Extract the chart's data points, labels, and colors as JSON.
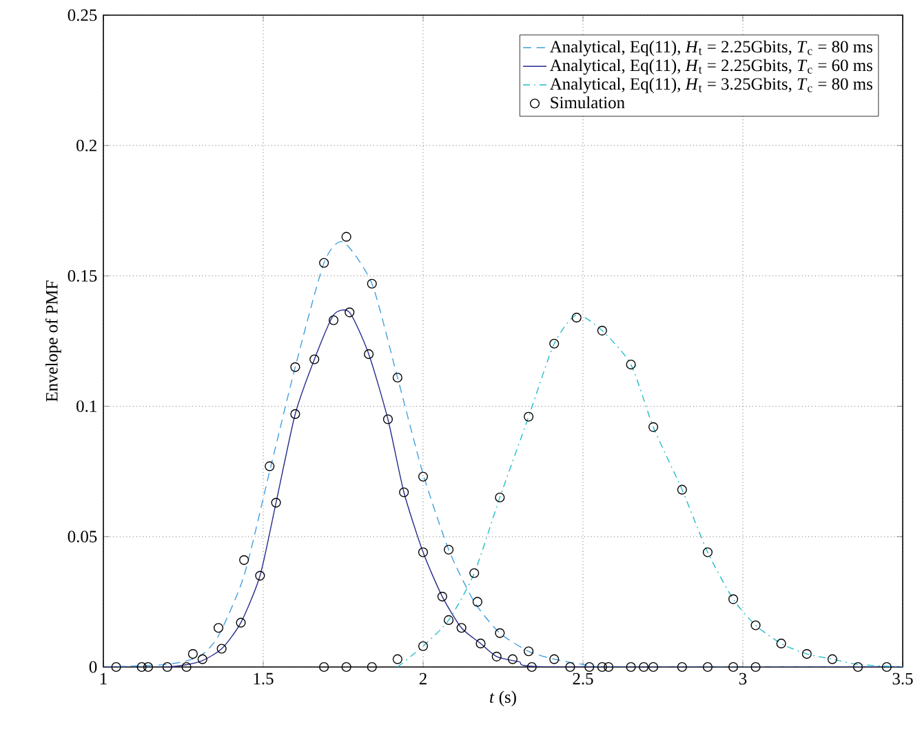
{
  "chart_data": {
    "type": "line",
    "xlabel": "*t* (s)",
    "ylabel": "Envelope of PMF",
    "xlim": [
      1,
      3.5
    ],
    "ylim": [
      0,
      0.25
    ],
    "xticks": [
      1,
      1.5,
      2,
      2.5,
      3,
      3.5
    ],
    "yticks": [
      0,
      0.05,
      0.1,
      0.15,
      0.2,
      0.25
    ],
    "grid": true,
    "legend": "top right",
    "series": [
      {
        "name": "Analytical, Eq(11), *H*$_{t}$ = 2.25Gbits, *T*$_{c}$ = 80 ms",
        "line_style": "dashed",
        "marker": "none",
        "color": "#3f9fdf",
        "x": [
          1.0,
          1.2,
          1.3,
          1.36,
          1.44,
          1.52,
          1.6,
          1.69,
          1.75,
          1.84,
          1.92,
          2.0,
          2.08,
          2.16,
          2.24,
          2.33,
          2.41,
          2.5,
          2.6,
          3.5
        ],
        "values": [
          0,
          0.001,
          0.004,
          0.012,
          0.035,
          0.075,
          0.115,
          0.155,
          0.163,
          0.147,
          0.111,
          0.074,
          0.045,
          0.025,
          0.013,
          0.006,
          0.003,
          0.001,
          0,
          0
        ]
      },
      {
        "name": "Analytical, Eq(11), *H*$_{t}$ = 2.25Gbits, *T*$_{c}$ = 60 ms",
        "line_style": "solid",
        "marker": "none",
        "color": "#262a8c",
        "x": [
          1.0,
          1.2,
          1.3,
          1.37,
          1.43,
          1.49,
          1.54,
          1.6,
          1.66,
          1.72,
          1.77,
          1.83,
          1.89,
          1.94,
          2.0,
          2.06,
          2.12,
          2.18,
          2.23,
          2.3,
          2.4,
          3.5
        ],
        "values": [
          0,
          0,
          0.002,
          0.007,
          0.017,
          0.035,
          0.063,
          0.097,
          0.118,
          0.135,
          0.136,
          0.12,
          0.095,
          0.067,
          0.044,
          0.027,
          0.015,
          0.009,
          0.004,
          0.002,
          0,
          0
        ]
      },
      {
        "name": "Analytical, Eq(11), *H*$_{t}$ = 3.25Gbits, *T*$_{c}$ = 80 ms",
        "line_style": "dashdot",
        "marker": "none",
        "color": "#1fbcc9",
        "x": [
          1.92,
          2.0,
          2.08,
          2.16,
          2.24,
          2.33,
          2.41,
          2.48,
          2.56,
          2.65,
          2.72,
          2.81,
          2.89,
          2.97,
          3.04,
          3.12,
          3.2,
          3.28,
          3.36,
          3.5
        ],
        "values": [
          0,
          0.008,
          0.018,
          0.036,
          0.065,
          0.096,
          0.124,
          0.135,
          0.129,
          0.116,
          0.092,
          0.068,
          0.044,
          0.026,
          0.016,
          0.009,
          0.005,
          0.003,
          0.001,
          0
        ]
      },
      {
        "name": "Simulation",
        "type": "scatter",
        "marker": "circle",
        "color": "#000000",
        "x": [
          1.04,
          1.12,
          1.14,
          1.2,
          1.26,
          1.28,
          1.31,
          1.36,
          1.37,
          1.43,
          1.44,
          1.49,
          1.52,
          1.54,
          1.6,
          1.6,
          1.66,
          1.69,
          1.72,
          1.76,
          1.77,
          1.83,
          1.84,
          1.89,
          1.92,
          1.94,
          2.0,
          2.0,
          2.06,
          2.08,
          2.08,
          2.12,
          2.16,
          2.17,
          2.18,
          2.23,
          2.24,
          2.28,
          2.33,
          2.34,
          2.41,
          1.69,
          1.76,
          1.84,
          1.92,
          2.0,
          2.24,
          2.33,
          2.41,
          2.48,
          2.56,
          2.65,
          2.72,
          2.81,
          2.89,
          2.97,
          3.04,
          3.12,
          3.2,
          3.28,
          3.36,
          3.45,
          2.46,
          2.52,
          2.56,
          2.58,
          2.65,
          2.69,
          2.72,
          2.81,
          2.89,
          2.97,
          3.04
        ],
        "values": [
          0,
          0,
          0,
          0,
          0,
          0.005,
          0.003,
          0.015,
          0.007,
          0.017,
          0.041,
          0.035,
          0.077,
          0.063,
          0.115,
          0.097,
          0.118,
          0.155,
          0.133,
          0.165,
          0.136,
          0.12,
          0.147,
          0.095,
          0.111,
          0.067,
          0.073,
          0.044,
          0.027,
          0.045,
          0.018,
          0.015,
          0.036,
          0.025,
          0.009,
          0.004,
          0.013,
          0.003,
          0.006,
          0,
          0.003,
          0,
          0,
          0,
          0.003,
          0.008,
          0.065,
          0.096,
          0.124,
          0.134,
          0.129,
          0.116,
          0.092,
          0.068,
          0.044,
          0.026,
          0.016,
          0.009,
          0.005,
          0.003,
          0,
          0,
          0,
          0,
          0,
          0,
          0,
          0,
          0,
          0,
          0,
          0,
          0
        ]
      }
    ]
  }
}
